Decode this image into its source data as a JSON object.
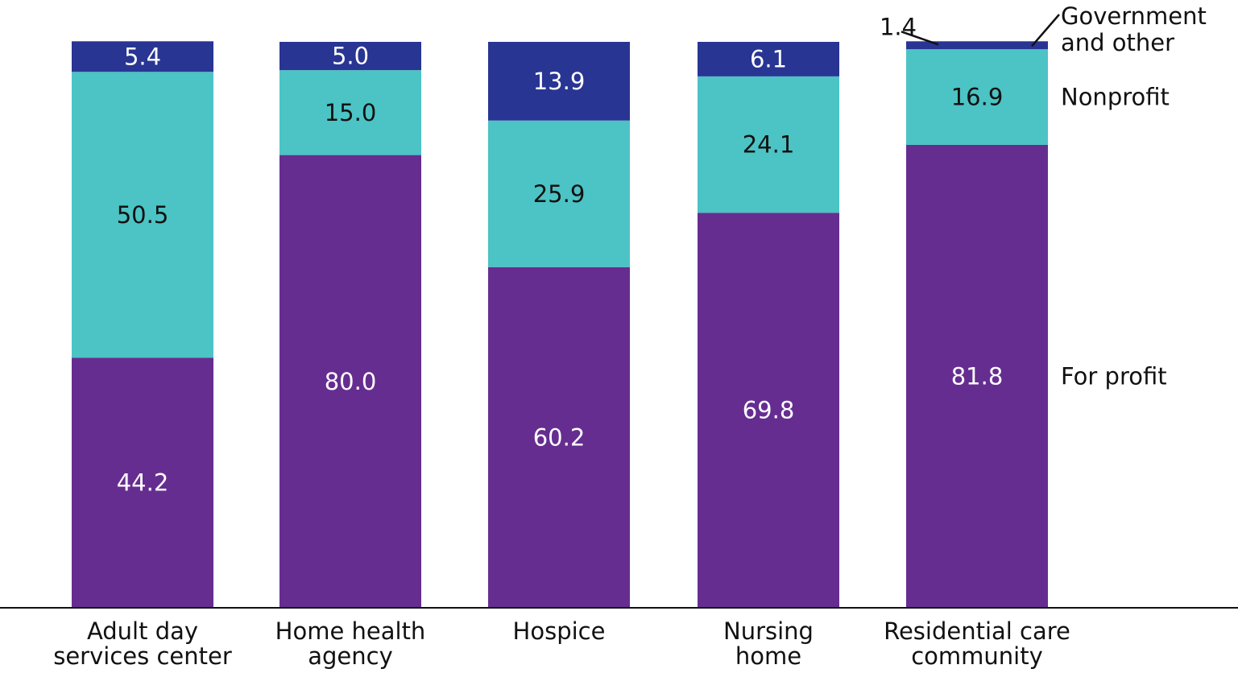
{
  "chart_data": {
    "type": "bar",
    "stacked": true,
    "categories": [
      [
        "Adult day",
        "services center"
      ],
      [
        "Home health",
        "agency"
      ],
      [
        "Hospice"
      ],
      [
        "Nursing",
        "home"
      ],
      [
        "Residential care",
        "community"
      ]
    ],
    "series": [
      {
        "name": "For profit",
        "values": [
          44.2,
          80.0,
          60.2,
          69.8,
          81.8
        ],
        "labels": [
          "44.2",
          "80.0",
          "60.2",
          "69.8",
          "81.8"
        ],
        "color": "#662d91",
        "label_color": "#ffffff"
      },
      {
        "name": "Nonprofit",
        "values": [
          50.5,
          15.0,
          25.9,
          24.1,
          16.9
        ],
        "labels": [
          "50.5",
          "15.0",
          "25.9",
          "24.1",
          "16.9"
        ],
        "color": "#4cc3c4",
        "label_color": "#111111"
      },
      {
        "name": [
          "Government",
          "and other"
        ],
        "values": [
          5.4,
          5.0,
          13.9,
          6.1,
          1.4
        ],
        "labels": [
          "5.4",
          "5.0",
          "13.9",
          "6.1",
          "1.4"
        ],
        "color": "#283593",
        "label_color": "#ffffff"
      }
    ],
    "ylim": [
      0,
      100
    ],
    "grid": false,
    "legend": "direct labels at right of last bar"
  }
}
